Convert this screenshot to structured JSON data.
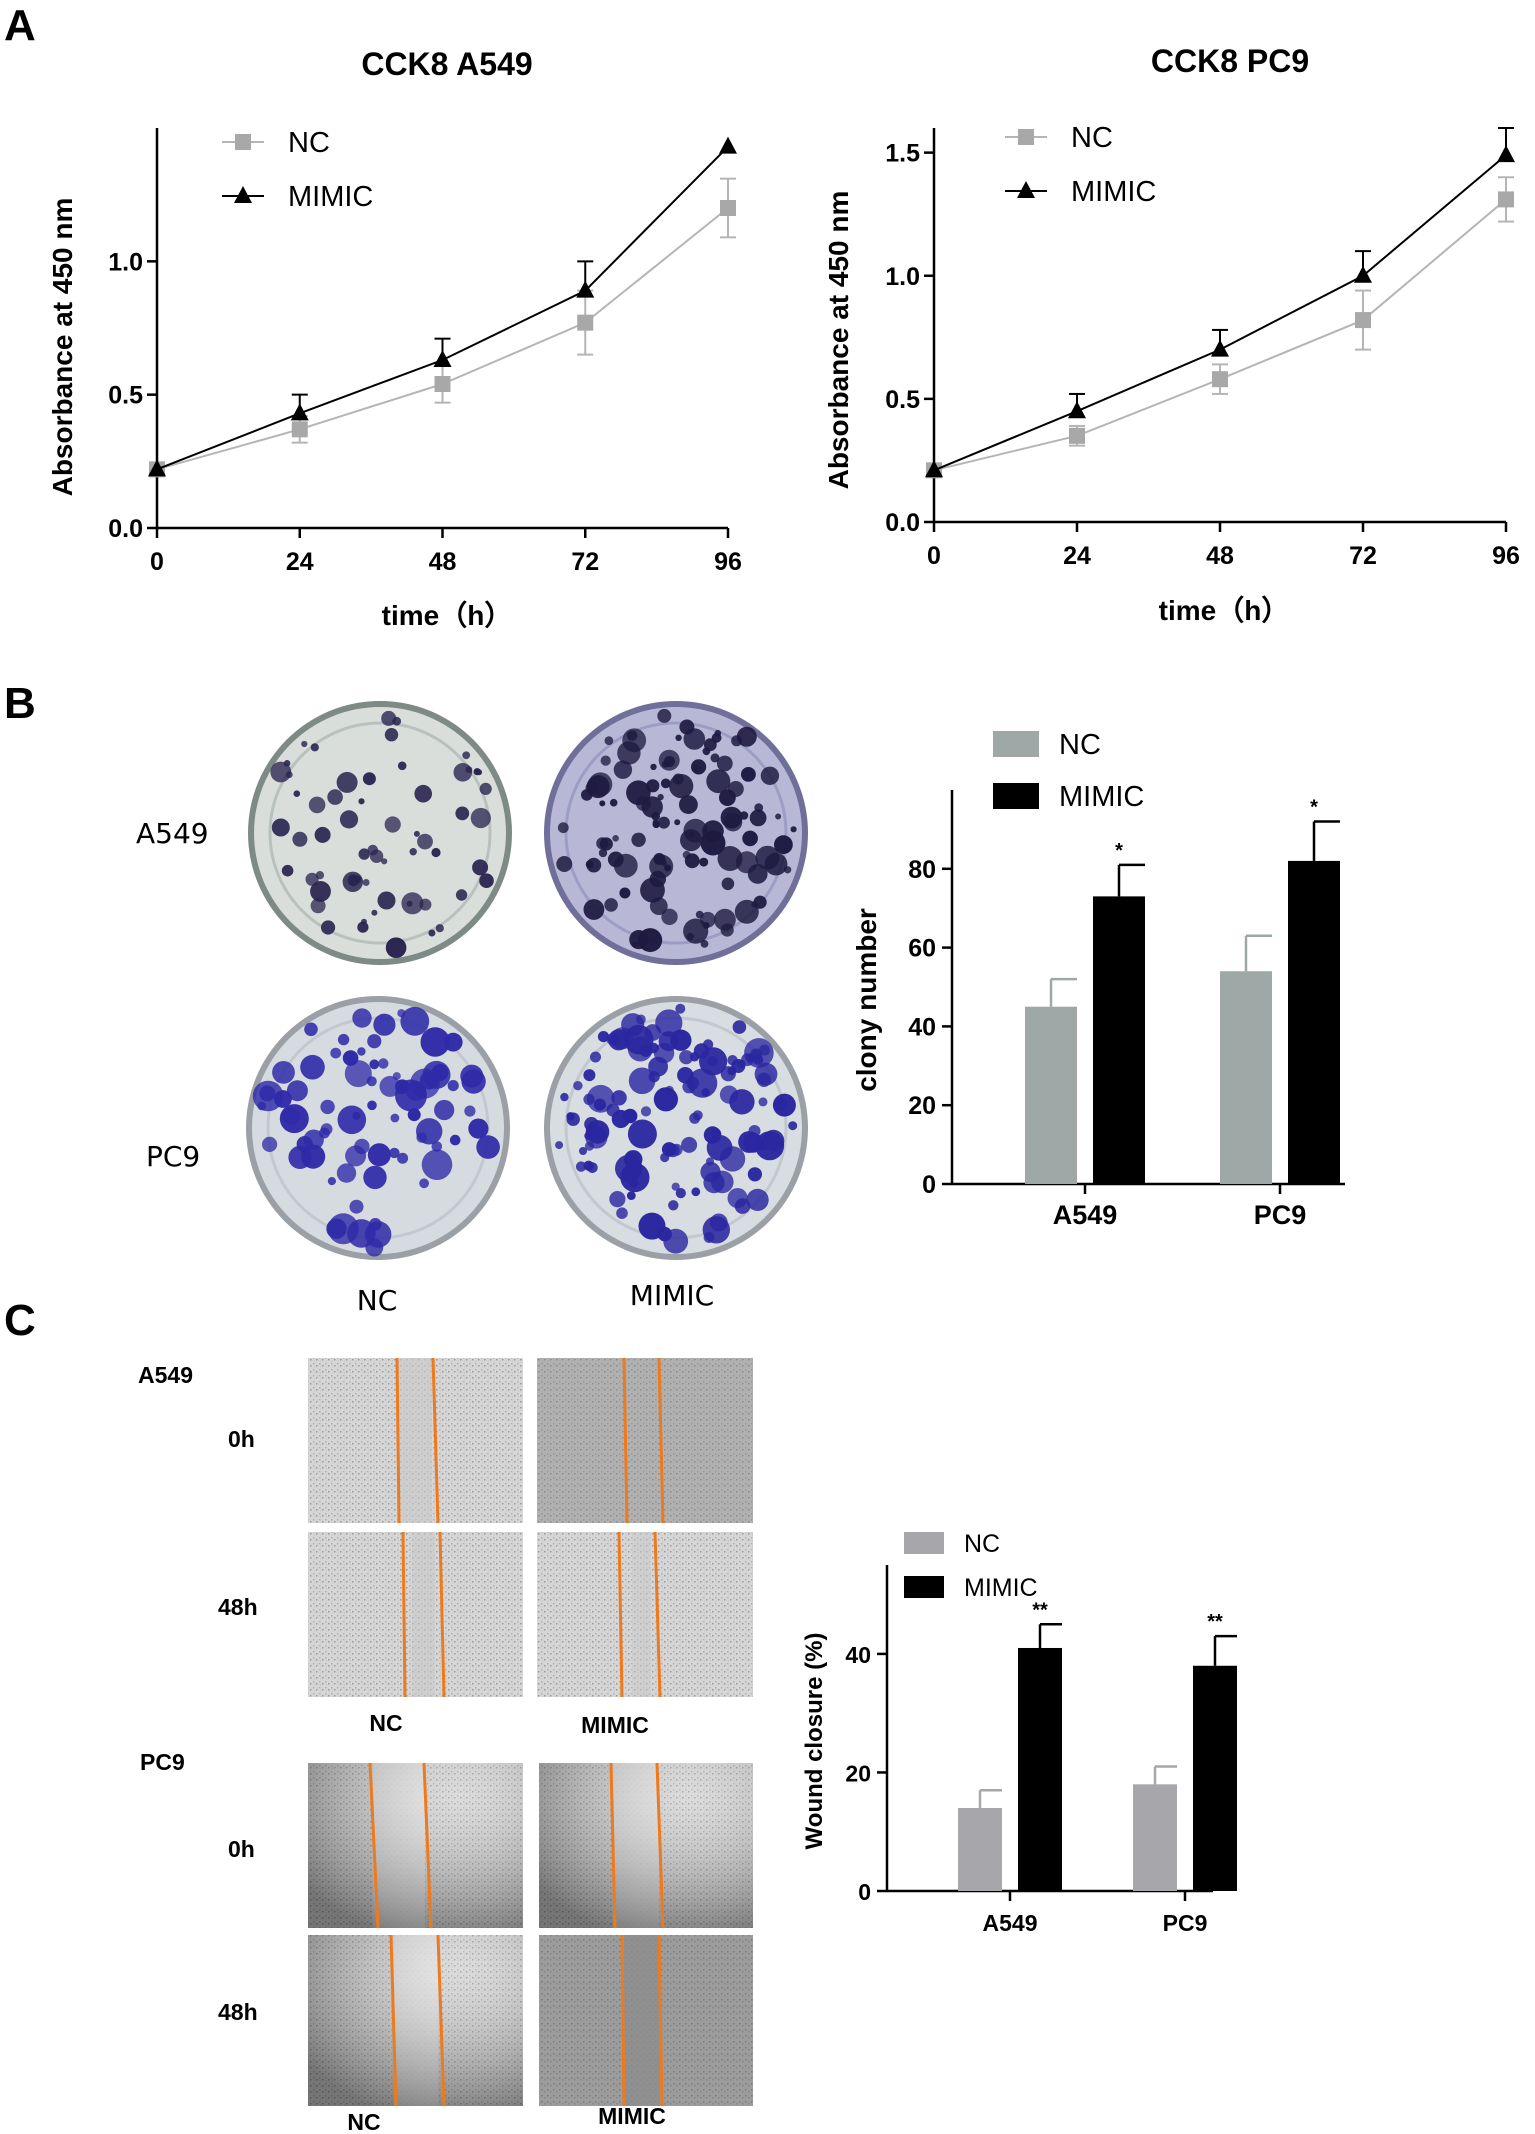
{
  "panels": {
    "a": "A",
    "b": "B",
    "c": "C"
  },
  "colors": {
    "nc_line": "#b5b5b5",
    "nc_marker": "#a8a8a8",
    "mimic": "#000000",
    "nc_bar_b": "#9ea8a6",
    "nc_bar_c": "#a6a6ab",
    "stain_a549": "#2a2450",
    "stain_pc9": "#2f2aa8",
    "wound_edge": "#ee7a1e"
  },
  "chart_data": [
    {
      "type": "line",
      "title": "CCK8 A549",
      "xlabel": "time（h）",
      "ylabel": "Absorbance at 450 nm",
      "x": [
        0,
        24,
        48,
        72,
        96
      ],
      "xticks": [
        "0",
        "24",
        "48",
        "72",
        "96"
      ],
      "yticks": [
        "0.0",
        "0.5",
        "1.0"
      ],
      "ylim": [
        0,
        1.5
      ],
      "legend_position": "top-left",
      "series": [
        {
          "name": "NC",
          "values": [
            0.22,
            0.37,
            0.54,
            0.77,
            1.2
          ],
          "errors": [
            0.0,
            0.05,
            0.07,
            0.12,
            0.11
          ]
        },
        {
          "name": "MIMIC",
          "values": [
            0.22,
            0.43,
            0.63,
            0.89,
            1.43
          ],
          "errors": [
            0.0,
            0.07,
            0.08,
            0.11,
            0.0
          ]
        }
      ]
    },
    {
      "type": "line",
      "title": "CCK8 PC9",
      "xlabel": "time（h）",
      "ylabel": "Absorbance at 450 nm",
      "x": [
        0,
        24,
        48,
        72,
        96
      ],
      "xticks": [
        "0",
        "24",
        "48",
        "72",
        "96"
      ],
      "yticks": [
        "0.0",
        "0.5",
        "1.0",
        "1.5"
      ],
      "ylim": [
        0,
        1.6
      ],
      "legend_position": "top-left",
      "series": [
        {
          "name": "NC",
          "values": [
            0.21,
            0.35,
            0.58,
            0.82,
            1.31
          ],
          "errors": [
            0.0,
            0.04,
            0.06,
            0.12,
            0.09
          ]
        },
        {
          "name": "MIMIC",
          "values": [
            0.21,
            0.45,
            0.7,
            1.0,
            1.49
          ],
          "errors": [
            0.0,
            0.07,
            0.08,
            0.1,
            0.11
          ]
        }
      ]
    },
    {
      "type": "bar",
      "title": "",
      "categories": [
        "A549",
        "PC9"
      ],
      "ylabel": "clony number",
      "yticks": [
        "0",
        "20",
        "40",
        "60",
        "80"
      ],
      "ylim": [
        0,
        100
      ],
      "legend_position": "top-left",
      "series": [
        {
          "name": "NC",
          "values": [
            45,
            54
          ],
          "errors": [
            7,
            9
          ],
          "sig": [
            "",
            ""
          ]
        },
        {
          "name": "MIMIC",
          "values": [
            73,
            82
          ],
          "errors": [
            8,
            10
          ],
          "sig": [
            "*",
            "*"
          ]
        }
      ]
    },
    {
      "type": "bar",
      "title": "",
      "categories": [
        "A549",
        "PC9"
      ],
      "ylabel": "Wound closure (%)",
      "yticks": [
        "0",
        "20",
        "40"
      ],
      "ylim": [
        0,
        55
      ],
      "legend_position": "top-left",
      "series": [
        {
          "name": "NC",
          "values": [
            14,
            18
          ],
          "errors": [
            3,
            3
          ],
          "sig": [
            "",
            ""
          ]
        },
        {
          "name": "MIMIC",
          "values": [
            41,
            38
          ],
          "errors": [
            4,
            5
          ],
          "sig": [
            "**",
            "**"
          ]
        }
      ]
    }
  ],
  "colony": {
    "rows": [
      "A549",
      "PC9"
    ],
    "cols": [
      "NC",
      "MIMIC"
    ]
  },
  "wound": {
    "groups": [
      {
        "cell": "A549",
        "times": [
          "0h",
          "48h"
        ],
        "cols": [
          "NC",
          "MIMIC"
        ]
      },
      {
        "cell": "PC9",
        "times": [
          "0h",
          "48h"
        ],
        "cols": [
          "NC",
          "MIMIC"
        ]
      }
    ]
  }
}
